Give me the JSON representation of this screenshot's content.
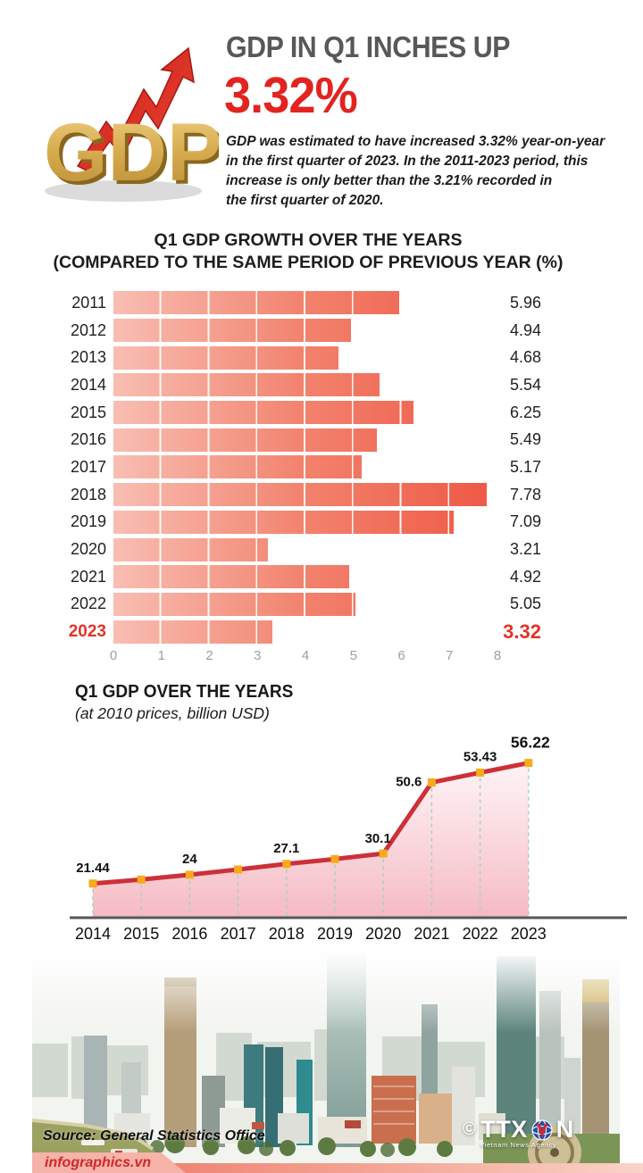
{
  "header": {
    "logo_text": "GDP",
    "title": "GDP IN Q1 INCHES UP",
    "value": "3.32%",
    "description": "GDP was estimated to have increased 3.32% year-on-year\nin the first quarter of 2023. In the 2011-2023 period, this\nincrease is only better than the 3.21% recorded in\nthe first quarter of 2020."
  },
  "chart_data": [
    {
      "type": "bar",
      "orientation": "horizontal",
      "title_line1": "Q1 GDP GROWTH OVER THE YEARS",
      "title_line2": "(COMPARED TO THE SAME PERIOD OF PREVIOUS YEAR (%)",
      "categories": [
        "2011",
        "2012",
        "2013",
        "2014",
        "2015",
        "2016",
        "2017",
        "2018",
        "2019",
        "2020",
        "2021",
        "2022",
        "2023"
      ],
      "values": [
        5.96,
        4.94,
        4.68,
        5.54,
        6.25,
        5.49,
        5.17,
        7.78,
        7.09,
        3.21,
        4.92,
        5.05,
        3.32
      ],
      "highlight_category": "2023",
      "xlim": [
        0,
        8
      ],
      "axis_ticks": [
        0,
        1,
        2,
        3,
        4,
        5,
        6,
        7,
        8
      ],
      "bar_color_start": "#f8beb3",
      "bar_color_end": "#ee5744",
      "highlight_color": "#e23427"
    },
    {
      "type": "area",
      "title": "Q1 GDP OVER THE YEARS",
      "subtitle": "(at 2010 prices, billion USD)",
      "x": [
        "2014",
        "2015",
        "2016",
        "2017",
        "2018",
        "2019",
        "2020",
        "2021",
        "2022",
        "2023"
      ],
      "values": [
        21.44,
        22.6,
        24,
        25.5,
        27.1,
        28.5,
        30.1,
        50.6,
        53.43,
        56.22
      ],
      "labels": [
        "21.44",
        "",
        "24",
        "",
        "27.1",
        "",
        "30.1",
        "50.6",
        "53.43",
        "56.22"
      ],
      "line_color": "#cd3038",
      "marker_color": "#f6aa1c",
      "dash_color": "#a5d3c0",
      "area_top_color": "#fdf1f3",
      "area_bottom_color": "#f5b6c0"
    }
  ],
  "footer": {
    "source": "Source: General Statistics Office",
    "brand": "infographics.vn",
    "agency_copyright": "©",
    "agency_prefix": "TTX",
    "agency_suffix": "N",
    "agency_sub": "Vietnam News Agency"
  }
}
